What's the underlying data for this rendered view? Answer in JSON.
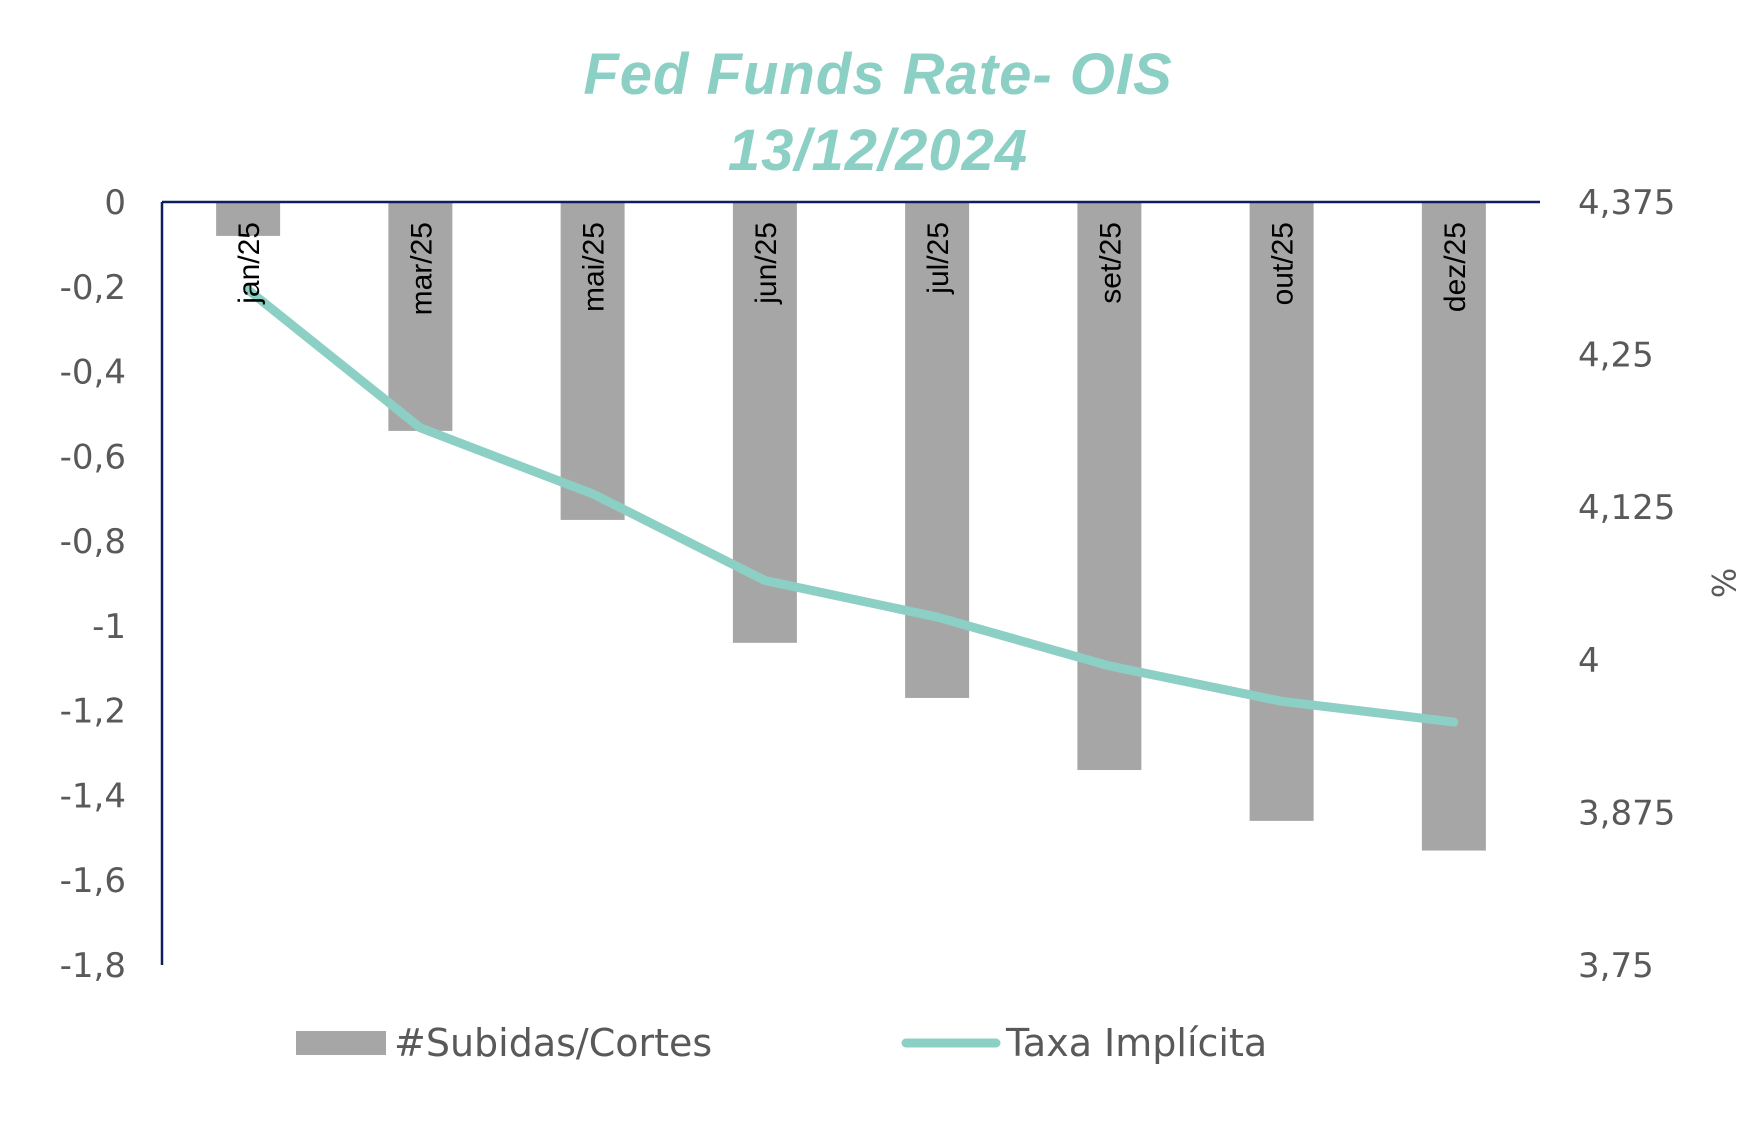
{
  "chart_data": {
    "type": "bar+line",
    "title": "Fed Funds Rate- OIS",
    "subtitle": "13/12/2024",
    "categories": [
      "jan/25",
      "mar/25",
      "mai/25",
      "jun/25",
      "jul/25",
      "set/25",
      "out/25",
      "dez/25"
    ],
    "series": [
      {
        "name": "#Subidas/Cortes",
        "type": "bar",
        "axis": "left",
        "values": [
          -0.08,
          -0.54,
          -0.75,
          -1.04,
          -1.17,
          -1.34,
          -1.46,
          -1.53
        ]
      },
      {
        "name": "Taxa Implícita",
        "type": "line",
        "axis": "right",
        "values": [
          4.303,
          4.19,
          4.136,
          4.065,
          4.035,
          3.995,
          3.966,
          3.949
        ]
      }
    ],
    "left_axis": {
      "ylim": [
        -1.8,
        0
      ],
      "ticks": [
        "0",
        "-0,2",
        "-0,4",
        "-0,6",
        "-0,8",
        "-1",
        "-1,2",
        "-1,4",
        "-1,6",
        "-1,8"
      ],
      "tick_values": [
        0,
        -0.2,
        -0.4,
        -0.6,
        -0.8,
        -1,
        -1.2,
        -1.4,
        -1.6,
        -1.8
      ]
    },
    "right_axis": {
      "ylim": [
        3.75,
        4.375
      ],
      "label": "%",
      "ticks": [
        "4,375",
        "4,25",
        "4,125",
        "4",
        "3,875",
        "3,75"
      ],
      "tick_values": [
        4.375,
        4.25,
        4.125,
        4,
        3.875,
        3.75
      ]
    },
    "legend": {
      "placement": "bottom"
    },
    "grid": false
  },
  "colors": {
    "title": "#8ccfc5",
    "bars": "#a6a6a6",
    "line": "#8ccfc5",
    "axis": "#0f1f5c",
    "text": "#595959"
  }
}
